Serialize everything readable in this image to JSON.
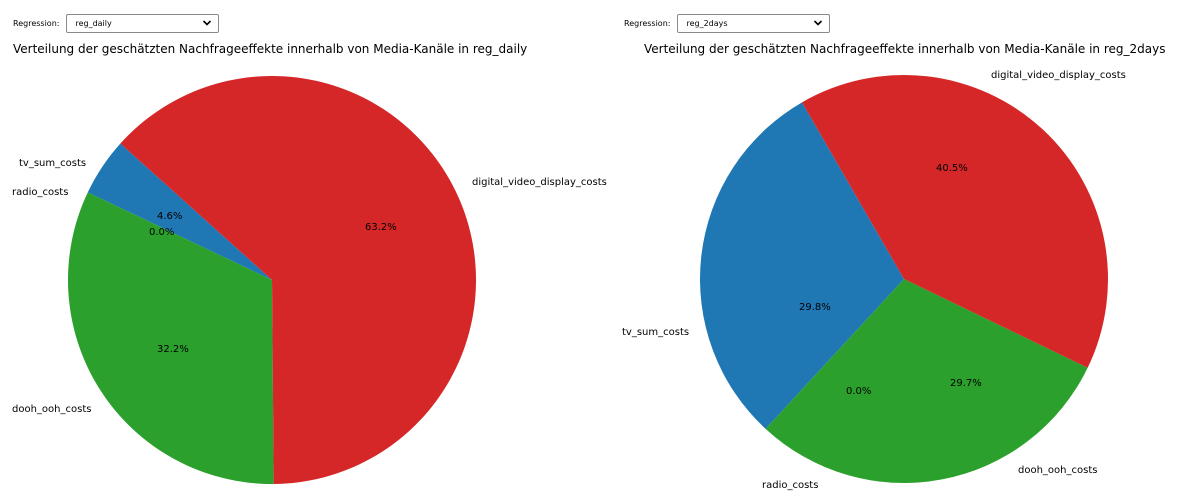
{
  "regression_label": "Regression:",
  "panels": [
    {
      "selected_regression": "reg_daily",
      "chart_data": {
        "type": "pie",
        "title": "Verteilung der geschätzten Nachfrageeffekte innerhalb von Media-Kanäle in reg_daily",
        "labels": [
          "tv_sum_costs",
          "radio_costs",
          "dooh_ooh_costs",
          "digital_video_display_costs"
        ],
        "values": [
          4.6,
          0.0,
          32.2,
          63.2
        ],
        "pct_labels": [
          "4.6%",
          "0.0%",
          "32.2%",
          "63.2%"
        ],
        "colors": [
          "#1f77b4",
          "#ff7f0e",
          "#2ca02c",
          "#d62728"
        ],
        "start_angle_deg": 138,
        "direction": "counterclockwise"
      }
    },
    {
      "selected_regression": "reg_2days",
      "chart_data": {
        "type": "pie",
        "title": "Verteilung der geschätzten Nachfrageeffekte innerhalb von Media-Kanäle in reg_2days",
        "labels": [
          "tv_sum_costs",
          "radio_costs",
          "dooh_ooh_costs",
          "digital_video_display_costs"
        ],
        "values": [
          29.8,
          0.0,
          29.7,
          40.5
        ],
        "pct_labels": [
          "29.8%",
          "0.0%",
          "29.7%",
          "40.5%"
        ],
        "colors": [
          "#1f77b4",
          "#ff7f0e",
          "#2ca02c",
          "#d62728"
        ],
        "start_angle_deg": 120,
        "direction": "counterclockwise"
      }
    }
  ]
}
